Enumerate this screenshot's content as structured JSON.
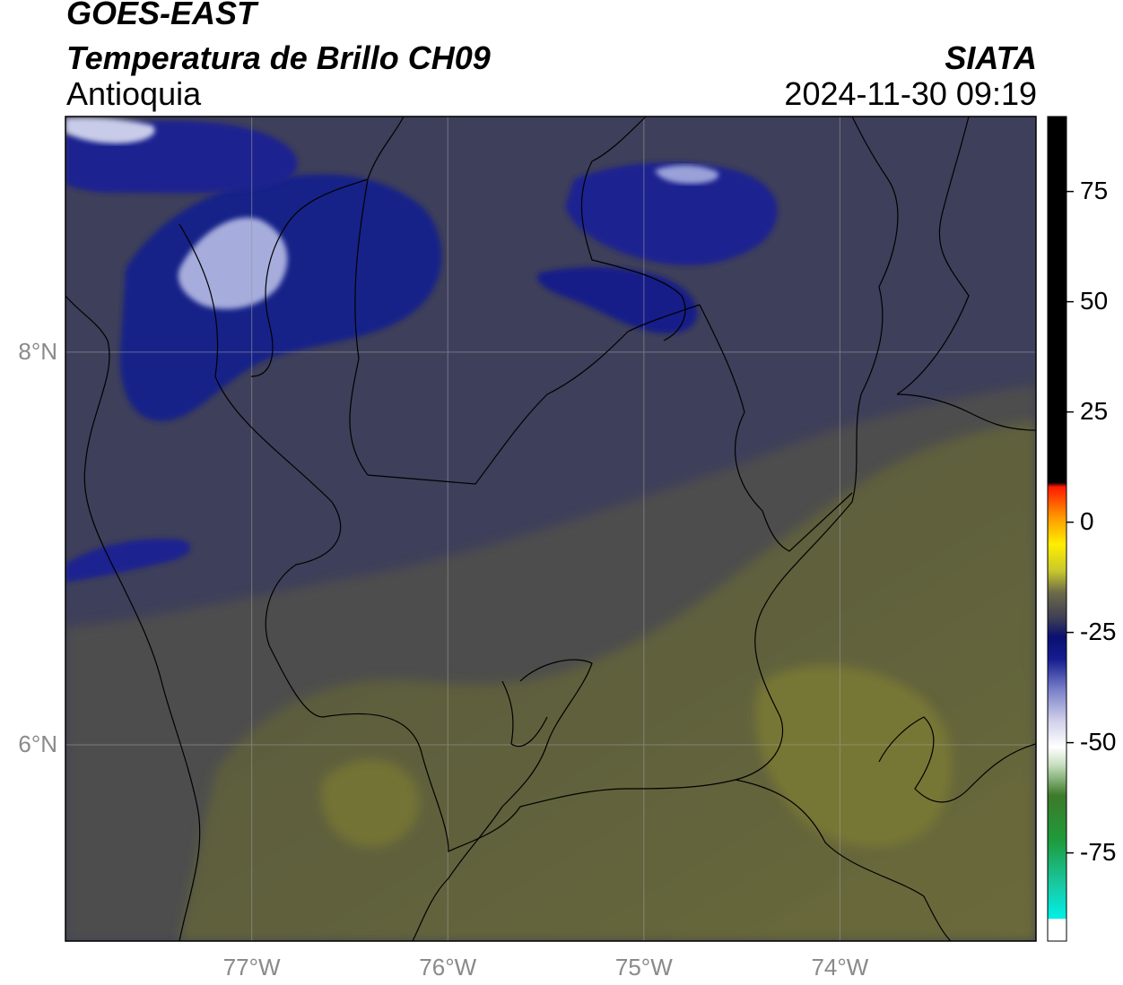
{
  "header": {
    "satellite": "GOES-EAST",
    "product": "Temperatura de Brillo CH09",
    "region": "Antioquia",
    "organization": "SIATA",
    "datetime": "2024-11-30 09:19"
  },
  "map": {
    "extent": {
      "lon_min": -77.95,
      "lon_max": -73.0,
      "lat_min": 5.0,
      "lat_max": 9.2
    },
    "gridlines": true,
    "latitude_ticks": [
      {
        "value": 8,
        "label": "8°N"
      },
      {
        "value": 6,
        "label": "6°N"
      }
    ],
    "longitude_ticks": [
      {
        "value": -77,
        "label": "77°W"
      },
      {
        "value": -76,
        "label": "76°W"
      },
      {
        "value": -75,
        "label": "75°W"
      },
      {
        "value": -74,
        "label": "74°W"
      }
    ],
    "colors": {
      "background_field": "#3e3f5a",
      "warm_field": "#5c5a42",
      "warmest_field": "#777734",
      "cold_cloud": "#0c1a8a",
      "coldest_cloud": "#c8cce8",
      "border_line": "#000000",
      "gridline": "#9a9a9a"
    }
  },
  "colorbar": {
    "min": -95,
    "max": 92,
    "ticks": [
      {
        "value": 75,
        "label": "75"
      },
      {
        "value": 50,
        "label": "50"
      },
      {
        "value": 25,
        "label": "25"
      },
      {
        "value": 0,
        "label": "0"
      },
      {
        "value": -25,
        "label": "-25"
      },
      {
        "value": -50,
        "label": "-50"
      },
      {
        "value": -75,
        "label": "-75"
      }
    ],
    "stops": [
      {
        "value": -95,
        "color": "#ffffff"
      },
      {
        "value": -90,
        "color": "#ffffff"
      },
      {
        "value": -89.9,
        "color": "#00f0e8"
      },
      {
        "value": -82,
        "color": "#19c8a0"
      },
      {
        "value": -72,
        "color": "#1f9a3a"
      },
      {
        "value": -62,
        "color": "#3d7a2a"
      },
      {
        "value": -55,
        "color": "#c8e0c0"
      },
      {
        "value": -51,
        "color": "#ffffff"
      },
      {
        "value": -45,
        "color": "#d0d0ea"
      },
      {
        "value": -38,
        "color": "#7a80c8"
      },
      {
        "value": -31,
        "color": "#141c90"
      },
      {
        "value": -26,
        "color": "#0a1070"
      },
      {
        "value": -22,
        "color": "#3c3c56"
      },
      {
        "value": -16,
        "color": "#6c6a48"
      },
      {
        "value": -11,
        "color": "#c8c82c"
      },
      {
        "value": -5,
        "color": "#ffee00"
      },
      {
        "value": 1,
        "color": "#ff9a00"
      },
      {
        "value": 8,
        "color": "#ff1a00"
      },
      {
        "value": 9,
        "color": "#000000"
      },
      {
        "value": 92,
        "color": "#000000"
      }
    ]
  }
}
